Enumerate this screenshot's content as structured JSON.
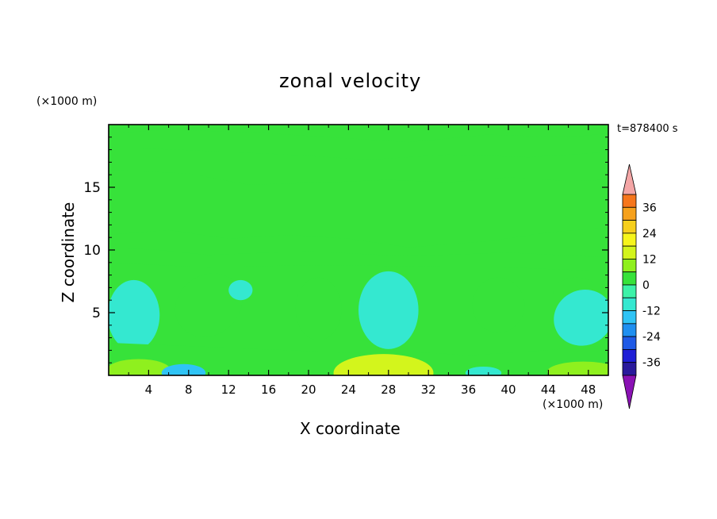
{
  "chart_data": {
    "type": "heatmap",
    "title": "zonal velocity",
    "xlabel": "X coordinate",
    "ylabel": "Z coordinate",
    "x_units": "(×1000 m)",
    "z_units": "(×1000 m)",
    "timestamp": "t=878400 s",
    "xlim": [
      0,
      50
    ],
    "ylim": [
      0,
      20
    ],
    "x_ticks": [
      4,
      8,
      12,
      16,
      20,
      24,
      28,
      32,
      36,
      40,
      44,
      48
    ],
    "y_ticks": [
      5,
      10,
      15
    ],
    "colorbar": {
      "labels": [
        "36",
        "24",
        "12",
        "0",
        "-12",
        "-24",
        "-36"
      ],
      "label_values": [
        36,
        24,
        12,
        0,
        -12,
        -24,
        -36
      ],
      "range": [
        -42,
        42
      ],
      "step": 6,
      "extend": "both",
      "colors": [
        "#5b1a8c",
        "#2a1a9c",
        "#1f1fd6",
        "#1f5ae6",
        "#1f8ff0",
        "#2fc4f5",
        "#34e8d0",
        "#3cf2a8",
        "#37e23a",
        "#8ff01e",
        "#d3f51c",
        "#f6f51c",
        "#f6cf1c",
        "#f6a11c",
        "#f6761c",
        "#f64a1c",
        "#e8271c",
        "#f4a6a6"
      ]
    },
    "field_description_levels": {
      "background": 0,
      "upper_band": 3,
      "mid_band": 3,
      "lower_pockets": -9,
      "surface_jets": -15
    }
  }
}
